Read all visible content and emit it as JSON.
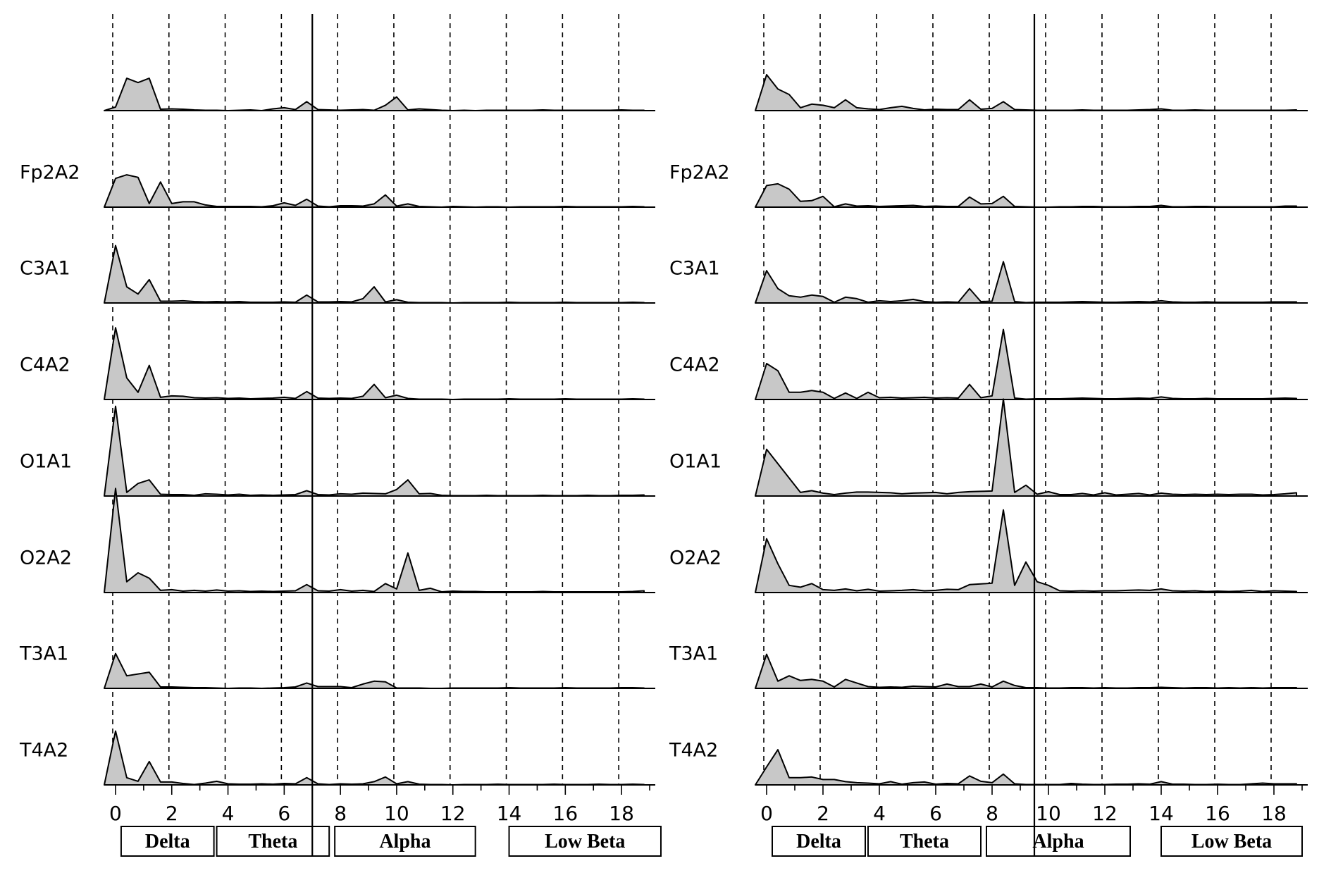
{
  "chart_data": [
    {
      "type": "area",
      "panel": "left",
      "x_ticks": [
        0,
        2,
        4,
        6,
        8,
        10,
        12,
        14,
        16,
        18
      ],
      "xlim": [
        -0.4,
        19.2
      ],
      "cursor_x": 7.0,
      "bands": [
        "Delta",
        "Theta",
        "Alpha",
        "Low Beta"
      ],
      "series": [
        {
          "name": "",
          "y": [
            0,
            0.1,
            0.9,
            0.78,
            0.9,
            0.04,
            0.05,
            0.04,
            0.02,
            0.01,
            0.01,
            0,
            0.01,
            0.02,
            0,
            0.05,
            0.08,
            0.03,
            0.25,
            0.03,
            0.02,
            0.01,
            0.02,
            0.03,
            0.01,
            0.15,
            0.38,
            0.02,
            0.05,
            0.03,
            0.01,
            0,
            0.01,
            0,
            0.01,
            0.01,
            0.01,
            0.01,
            0.01,
            0.02,
            0.01,
            0.01,
            0.01,
            0.01,
            0.01,
            0.01,
            0.02,
            0.01,
            0.01
          ]
        },
        {
          "name": "Fp2A2",
          "y": [
            0,
            0.8,
            0.9,
            0.83,
            0.1,
            0.7,
            0.1,
            0.15,
            0.15,
            0.06,
            0.02,
            0.02,
            0.02,
            0.02,
            0.01,
            0.04,
            0.12,
            0.05,
            0.22,
            0.03,
            0.01,
            0.04,
            0.04,
            0.03,
            0.09,
            0.34,
            0.03,
            0.09,
            0.02,
            0.01,
            0,
            0.02,
            0.01,
            0,
            0.01,
            0.01,
            0,
            0.01,
            0.01,
            0.01,
            0.01,
            0.02,
            0.01,
            0.01,
            0.01,
            0.01,
            0.01,
            0.02,
            0.01
          ]
        },
        {
          "name": "C3A1",
          "y": [
            0,
            1.6,
            0.45,
            0.25,
            0.65,
            0.05,
            0.05,
            0.06,
            0.04,
            0.03,
            0.04,
            0.03,
            0.04,
            0.02,
            0.02,
            0.02,
            0.03,
            0.02,
            0.22,
            0.03,
            0.03,
            0.04,
            0.03,
            0.12,
            0.45,
            0.03,
            0.09,
            0.02,
            0.01,
            0.01,
            0.01,
            0,
            0.01,
            0.01,
            0.01,
            0.01,
            0.02,
            0.01,
            0.01,
            0.01,
            0.01,
            0.02,
            0.01,
            0.01,
            0.01,
            0.01,
            0.01,
            0.02,
            0.01
          ]
        },
        {
          "name": "C4A2",
          "y": [
            0,
            2.0,
            0.6,
            0.2,
            0.95,
            0.06,
            0.1,
            0.09,
            0.05,
            0.04,
            0.05,
            0.03,
            0.04,
            0.02,
            0.03,
            0.04,
            0.06,
            0.03,
            0.22,
            0.04,
            0.03,
            0.04,
            0.03,
            0.09,
            0.42,
            0.05,
            0.12,
            0.03,
            0.01,
            0.01,
            0.01,
            0,
            0.01,
            0.01,
            0.01,
            0.01,
            0.02,
            0.01,
            0.01,
            0.01,
            0.01,
            0.02,
            0.01,
            0.01,
            0.01,
            0.01,
            0.01,
            0.02,
            0.01
          ]
        },
        {
          "name": "O1A1",
          "y": [
            0,
            2.5,
            0.1,
            0.35,
            0.45,
            0.05,
            0.04,
            0.04,
            0.02,
            0.06,
            0.05,
            0.03,
            0.05,
            0.02,
            0.03,
            0.02,
            0.03,
            0.04,
            0.15,
            0.04,
            0.03,
            0.06,
            0.05,
            0.08,
            0.07,
            0.06,
            0.18,
            0.45,
            0.06,
            0.07,
            0.02,
            0.01,
            0.01,
            0.01,
            0.02,
            0.01,
            0.01,
            0.01,
            0.01,
            0.02,
            0.01,
            0.01,
            0.01,
            0.02,
            0.01,
            0.01,
            0.02,
            0.02,
            0.03
          ]
        },
        {
          "name": "O2A2",
          "y": [
            0,
            2.9,
            0.3,
            0.55,
            0.4,
            0.06,
            0.08,
            0.04,
            0.06,
            0.04,
            0.07,
            0.04,
            0.05,
            0.03,
            0.04,
            0.03,
            0.04,
            0.05,
            0.22,
            0.05,
            0.04,
            0.08,
            0.04,
            0.06,
            0.03,
            0.25,
            0.1,
            1.1,
            0.06,
            0.12,
            0.02,
            0.04,
            0.03,
            0.03,
            0.02,
            0.02,
            0.02,
            0.02,
            0.02,
            0.03,
            0.02,
            0.02,
            0.02,
            0.02,
            0.02,
            0.02,
            0.02,
            0.03,
            0.05
          ]
        },
        {
          "name": "T3A1",
          "y": [
            0,
            0.97,
            0.35,
            0.4,
            0.45,
            0.04,
            0.04,
            0.03,
            0.02,
            0.02,
            0.01,
            0,
            0.01,
            0.01,
            0,
            0.01,
            0.02,
            0.04,
            0.15,
            0.05,
            0.05,
            0.05,
            0.02,
            0.12,
            0.2,
            0.18,
            0.01,
            0.01,
            0.01,
            0,
            0,
            0.01,
            0.01,
            0.01,
            0.01,
            0.01,
            0.02,
            0.01,
            0.01,
            0.01,
            0.01,
            0.02,
            0.01,
            0.01,
            0.01,
            0.01,
            0.02,
            0.02,
            0.01
          ]
        },
        {
          "name": "T4A2",
          "y": [
            0,
            1.5,
            0.2,
            0.1,
            0.65,
            0.08,
            0.08,
            0.04,
            0.01,
            0.05,
            0.1,
            0.03,
            0.02,
            0.02,
            0.03,
            0.02,
            0.04,
            0.03,
            0.2,
            0.03,
            0.01,
            0.03,
            0.02,
            0.03,
            0.09,
            0.22,
            0.03,
            0.09,
            0.02,
            0.01,
            0.01,
            0,
            0.01,
            0.01,
            0.01,
            0.02,
            0.01,
            0.01,
            0.01,
            0.01,
            0.02,
            0.01,
            0.01,
            0.01,
            0.02,
            0.01,
            0.01,
            0.02,
            0.01
          ]
        }
      ]
    },
    {
      "type": "area",
      "panel": "right",
      "x_ticks": [
        0,
        2,
        4,
        6,
        8,
        10,
        12,
        14,
        16,
        18
      ],
      "xlim": [
        -0.4,
        19.2
      ],
      "cursor_x": 9.5,
      "bands": [
        "Delta",
        "Theta",
        "Alpha",
        "Low Beta"
      ],
      "series": [
        {
          "name": "",
          "y": [
            0,
            1.0,
            0.6,
            0.45,
            0.08,
            0.18,
            0.15,
            0.08,
            0.3,
            0.08,
            0.05,
            0.03,
            0.08,
            0.12,
            0.06,
            0.02,
            0.04,
            0.03,
            0.03,
            0.3,
            0.04,
            0.06,
            0.25,
            0.03,
            0.02,
            0.01,
            0.01,
            0.01,
            0.01,
            0.02,
            0.01,
            0.01,
            0.01,
            0.01,
            0.02,
            0.03,
            0.05,
            0.01,
            0.01,
            0.02,
            0.01,
            0.01,
            0.01,
            0.01,
            0.01,
            0.01,
            0.01,
            0.01,
            0.02
          ]
        },
        {
          "name": "Fp2A2",
          "y": [
            0,
            0.6,
            0.65,
            0.5,
            0.16,
            0.18,
            0.3,
            0.01,
            0.09,
            0.03,
            0.04,
            0.02,
            0.03,
            0.04,
            0.05,
            0.02,
            0.03,
            0.02,
            0.02,
            0.28,
            0.09,
            0.1,
            0.3,
            0.02,
            0.01,
            0,
            0,
            0.01,
            0.01,
            0.02,
            0.02,
            0.01,
            0.01,
            0.01,
            0.02,
            0.02,
            0.05,
            0.01,
            0.01,
            0.02,
            0.02,
            0.01,
            0.01,
            0.01,
            0.01,
            0.01,
            0.01,
            0.03,
            0.03
          ]
        },
        {
          "name": "C3A1",
          "y": [
            0,
            0.9,
            0.4,
            0.2,
            0.16,
            0.22,
            0.18,
            0.02,
            0.16,
            0.12,
            0.02,
            0.06,
            0.04,
            0.06,
            0.1,
            0.04,
            0.02,
            0.03,
            0.02,
            0.4,
            0.04,
            0.05,
            1.15,
            0.04,
            0.01,
            0.02,
            0.02,
            0.02,
            0.03,
            0.04,
            0.03,
            0.02,
            0.02,
            0.03,
            0.04,
            0.03,
            0.06,
            0.03,
            0.02,
            0.02,
            0.03,
            0.02,
            0.02,
            0.02,
            0.02,
            0.02,
            0.03,
            0.03,
            0.03
          ]
        },
        {
          "name": "C4A2",
          "y": [
            0,
            1.0,
            0.8,
            0.2,
            0.2,
            0.25,
            0.2,
            0.03,
            0.18,
            0.03,
            0.2,
            0.05,
            0.06,
            0.04,
            0.05,
            0.06,
            0.04,
            0.05,
            0.04,
            0.42,
            0.05,
            0.1,
            1.95,
            0.04,
            0.01,
            0.02,
            0.02,
            0.02,
            0.03,
            0.04,
            0.03,
            0.02,
            0.02,
            0.03,
            0.04,
            0.03,
            0.07,
            0.03,
            0.02,
            0.02,
            0.03,
            0.02,
            0.02,
            0.02,
            0.02,
            0.02,
            0.03,
            0.04,
            0.03
          ]
        },
        {
          "name": "O1A1",
          "y": [
            0,
            1.3,
            0.9,
            0.5,
            0.1,
            0.15,
            0.08,
            0.04,
            0.08,
            0.11,
            0.11,
            0.1,
            0.09,
            0.06,
            0.08,
            0.09,
            0.1,
            0.06,
            0.1,
            0.12,
            0.13,
            0.14,
            2.7,
            0.1,
            0.3,
            0.05,
            0.12,
            0.04,
            0.04,
            0.07,
            0.03,
            0.09,
            0.03,
            0.05,
            0.07,
            0.03,
            0.08,
            0.05,
            0.04,
            0.05,
            0.04,
            0.05,
            0.04,
            0.05,
            0.05,
            0.03,
            0.04,
            0.06,
            0.09
          ]
        },
        {
          "name": "O2A2",
          "y": [
            0,
            1.5,
            0.8,
            0.2,
            0.15,
            0.25,
            0.08,
            0.06,
            0.1,
            0.05,
            0.09,
            0.04,
            0.05,
            0.06,
            0.08,
            0.05,
            0.06,
            0.09,
            0.08,
            0.22,
            0.24,
            0.26,
            2.3,
            0.2,
            0.85,
            0.3,
            0.2,
            0.05,
            0.04,
            0.05,
            0.04,
            0.05,
            0.05,
            0.06,
            0.07,
            0.06,
            0.1,
            0.05,
            0.04,
            0.05,
            0.03,
            0.04,
            0.03,
            0.04,
            0.06,
            0.03,
            0.05,
            0.04,
            0.03
          ]
        },
        {
          "name": "T3A1",
          "y": [
            0,
            0.95,
            0.2,
            0.35,
            0.22,
            0.25,
            0.2,
            0.04,
            0.25,
            0.15,
            0.05,
            0.03,
            0.04,
            0.03,
            0.06,
            0.05,
            0.04,
            0.12,
            0.05,
            0.05,
            0.12,
            0.04,
            0.2,
            0.08,
            0.02,
            0.02,
            0.01,
            0.01,
            0.02,
            0.02,
            0.01,
            0.02,
            0.01,
            0.01,
            0.02,
            0.02,
            0.03,
            0.02,
            0.01,
            0.02,
            0.02,
            0.01,
            0.02,
            0.01,
            0.02,
            0.01,
            0.02,
            0.02,
            0.02
          ]
        },
        {
          "name": "T4A2",
          "y": [
            0,
            0.5,
            0.98,
            0.2,
            0.2,
            0.22,
            0.15,
            0.15,
            0.09,
            0.06,
            0.05,
            0.03,
            0.09,
            0.02,
            0.06,
            0.08,
            0.02,
            0.04,
            0.03,
            0.25,
            0.1,
            0.06,
            0.3,
            0.03,
            0.01,
            0.01,
            0.01,
            0.01,
            0.04,
            0.02,
            0.01,
            0.01,
            0.02,
            0.02,
            0.03,
            0.02,
            0.09,
            0.02,
            0.02,
            0.01,
            0.01,
            0.02,
            0.01,
            0.01,
            0.03,
            0.05,
            0.03,
            0.03,
            0.03
          ]
        }
      ]
    }
  ],
  "style": {
    "fill": "#c8c8c8",
    "stroke": "#000000"
  }
}
